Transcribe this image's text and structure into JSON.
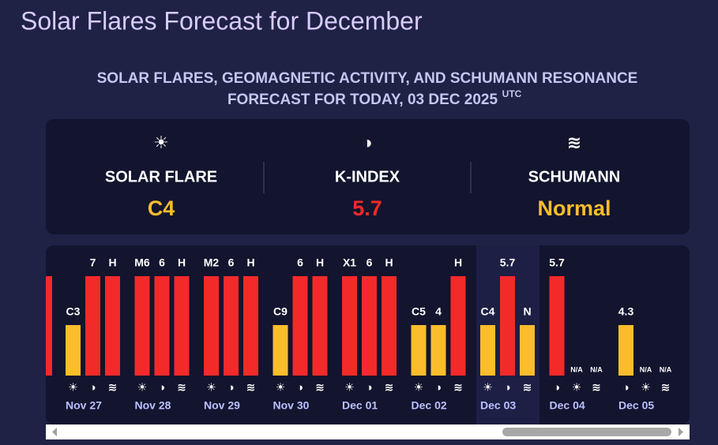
{
  "header": {
    "title": "Solar Flares Forecast for December",
    "subtitle_line1": "SOLAR FLARES, GEOMAGNETIC ACTIVITY, AND SCHUMANN RESONANCE",
    "subtitle_line2": "FORECAST FOR TODAY, 03 DEC 2025",
    "subtitle_sup": "UTC"
  },
  "summary": [
    {
      "icon": "☀",
      "label": "SOLAR FLARE",
      "value": "C4",
      "color": "#fbbd2c"
    },
    {
      "icon": "◑",
      "label": "K-INDEX",
      "value": 5.7,
      "color": "#f32a2a"
    },
    {
      "icon": "≋",
      "label": "SCHUMANN",
      "value": "Normal",
      "color": "#fbbd2c"
    }
  ],
  "days": [
    {
      "date": "Nov 27",
      "bars": [
        {
          "icon": "☀",
          "label": "C3",
          "color": "#fbbd2c"
        },
        {
          "icon": "◑",
          "label": 7,
          "color": "#f32a2a"
        },
        {
          "icon": "≋",
          "label": "H",
          "color": "#f32a2a"
        }
      ]
    },
    {
      "date": "Nov 28",
      "bars": [
        {
          "icon": "☀",
          "label": "M6",
          "color": "#f32a2a"
        },
        {
          "icon": "◑",
          "label": 6,
          "color": "#f32a2a"
        },
        {
          "icon": "≋",
          "label": "H",
          "color": "#f32a2a"
        }
      ]
    },
    {
      "date": "Nov 29",
      "bars": [
        {
          "icon": "☀",
          "label": "M2",
          "color": "#f32a2a"
        },
        {
          "icon": "◑",
          "label": 6,
          "color": "#f32a2a"
        },
        {
          "icon": "≋",
          "label": "H",
          "color": "#f32a2a"
        }
      ]
    },
    {
      "date": "Nov 30",
      "bars": [
        {
          "icon": "☀",
          "label": "C9",
          "color": "#fbbd2c"
        },
        {
          "icon": "◑",
          "label": 6,
          "color": "#f32a2a"
        },
        {
          "icon": "≋",
          "label": "H",
          "color": "#f32a2a"
        }
      ]
    },
    {
      "date": "Dec 01",
      "bars": [
        {
          "icon": "☀",
          "label": "X1",
          "color": "#f32a2a"
        },
        {
          "icon": "◑",
          "label": 6,
          "color": "#f32a2a"
        },
        {
          "icon": "≋",
          "label": "H",
          "color": "#f32a2a"
        }
      ]
    },
    {
      "date": "Dec 02",
      "bars": [
        {
          "icon": "☀",
          "label": "C5",
          "color": "#fbbd2c"
        },
        {
          "icon": "◑",
          "label": 4,
          "color": "#fbbd2c"
        },
        {
          "icon": "≋",
          "label": "H",
          "color": "#f32a2a"
        }
      ]
    },
    {
      "date": "Dec 03",
      "today": true,
      "bars": [
        {
          "icon": "☀",
          "label": "C4",
          "color": "#fbbd2c"
        },
        {
          "icon": "◑",
          "label": 5.7,
          "color": "#f32a2a"
        },
        {
          "icon": "≋",
          "label": "N",
          "color": "#fbbd2c"
        }
      ]
    },
    {
      "date": "Dec 04",
      "bars": [
        {
          "icon": "◑",
          "label": 5.7,
          "color": "#f32a2a"
        },
        {
          "icon": "☀",
          "label": "N/A"
        },
        {
          "icon": "≋",
          "label": "N/A"
        }
      ]
    },
    {
      "date": "Dec 05",
      "bars": [
        {
          "icon": "◑",
          "label": 4.3,
          "color": "#fbbd2c"
        },
        {
          "icon": "☀",
          "label": "N/A"
        },
        {
          "icon": "≋",
          "label": "N/A"
        }
      ]
    }
  ]
}
